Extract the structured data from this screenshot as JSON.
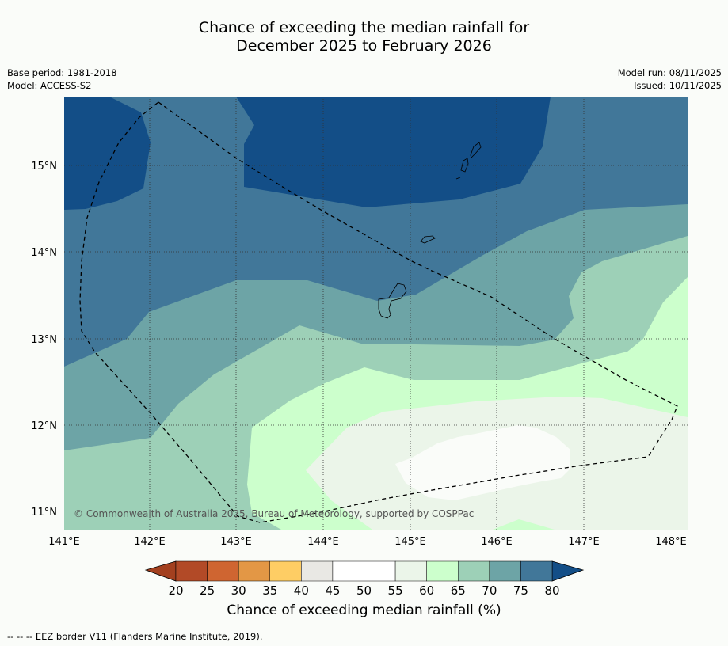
{
  "title": {
    "line1": "Chance of exceeding the median rainfall for",
    "line2": "December 2025 to February 2026"
  },
  "meta_left": {
    "base_period": "Base period: 1981-2018",
    "model": "Model: ACCESS-S2"
  },
  "meta_right": {
    "model_run": "Model run: 08/11/2025",
    "issued": "Issued: 10/11/2025"
  },
  "map": {
    "lat_labels": [
      "15°N",
      "14°N",
      "13°N",
      "12°N",
      "11°N"
    ],
    "lon_labels": [
      "141°E",
      "142°E",
      "143°E",
      "144°E",
      "145°E",
      "146°E",
      "147°E",
      "148°E"
    ],
    "copyright": "© Commonwealth of Australia 2025, Bureau of Meteorology, supported by COSPPac"
  },
  "colorbar": {
    "ticks": [
      "20",
      "25",
      "30",
      "35",
      "40",
      "45",
      "50",
      "55",
      "60",
      "65",
      "70",
      "75",
      "80"
    ],
    "colors": [
      "#b24a27",
      "#cf6531",
      "#e39745",
      "#fecd64",
      "#e9e8e4",
      "#ffffff",
      "#ffffff",
      "#ebf5e9",
      "#ccffcc",
      "#9dd0b7",
      "#6da4a6",
      "#417799"
    ],
    "under_color": "#a3401f",
    "over_color": "#134e87",
    "label": "Chance of exceeding median rainfall (%)"
  },
  "footnote": "--  --  -- EEZ border V11 (Flanders Marine Institute, 2019).",
  "palette": {
    "c80": "#134e87",
    "c75": "#417799",
    "c70": "#6da4a6",
    "c65": "#9dd0b7",
    "c60": "#ccffcc",
    "c55": "#ebf5e9",
    "c50": "#fafcf9"
  }
}
